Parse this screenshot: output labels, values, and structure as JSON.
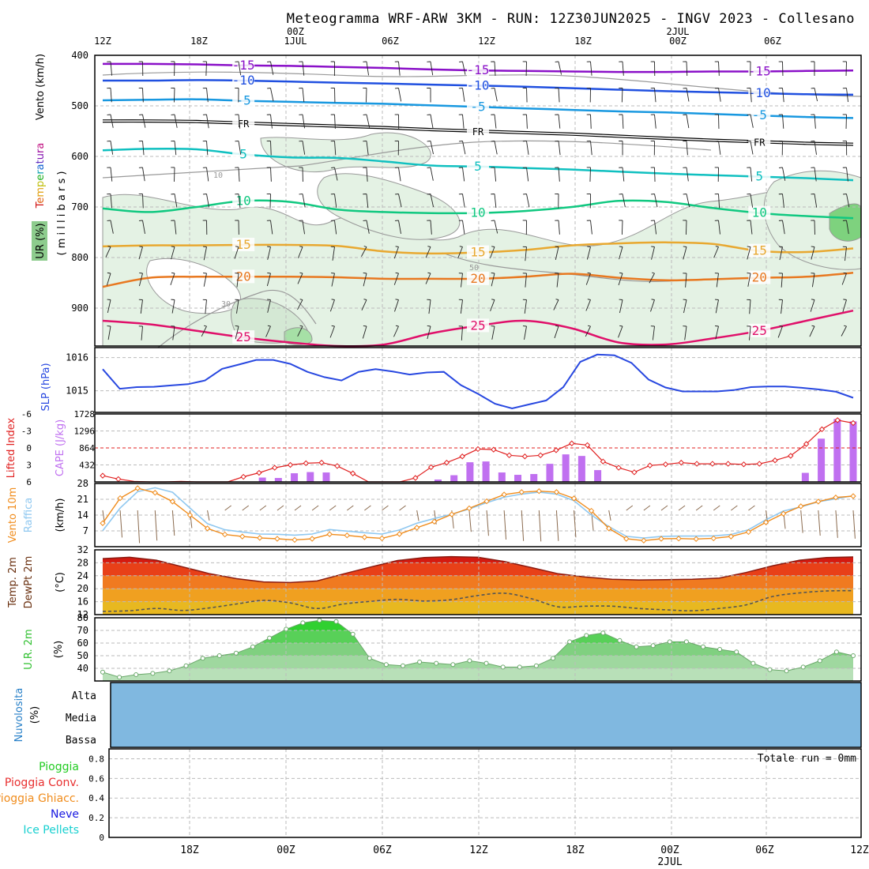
{
  "title": "Meteogramma WRF-ARW 3KM - RUN: 12Z30JUN2025 - INGV 2023 - Collesano",
  "colors": {
    "temp_iso": {
      "-15": "#8a10c8",
      "-10": "#2050e0",
      "-5": "#1898e0",
      "FR": "#000000",
      "5": "#10c0c0",
      "10": "#10c880",
      "15": "#e8a830",
      "20": "#e87820",
      "25": "#e0106a"
    },
    "slp": "#2848e0",
    "cape_bar": "#c070f0",
    "li_line": "#e02020",
    "wind": "#f08c1c",
    "gust": "#90c8f0",
    "arrow": "#8a6a4e",
    "cloud": "#80b8e0",
    "rh_fill": "#30dd30",
    "ur_bg": "#e6f3e6"
  },
  "chart_data": [
    {
      "id": "upper_air",
      "type": "contour",
      "top_labels": [
        "12Z",
        "18Z",
        "1JUL",
        "00Z",
        "06Z",
        "12Z",
        "18Z",
        "2JUL",
        "00Z",
        "06Z"
      ],
      "ylabel_wind": "Vento (km/h)",
      "ylabel_temp": "Temperatura",
      "ylabel_ur": "UR (%)",
      "ylabel_units": "( m i l l i b a r s )",
      "y_ticks": [
        "400",
        "500",
        "600",
        "700",
        "800",
        "900"
      ],
      "ylim": [
        975,
        400
      ],
      "isotherms": [
        {
          "label": "-15",
          "p": [
            417,
            417,
            418,
            420,
            421,
            423,
            425,
            428,
            430,
            431,
            432,
            433,
            433,
            432,
            432,
            431,
            430
          ]
        },
        {
          "label": "-10",
          "p": [
            450,
            450,
            449,
            450,
            452,
            454,
            456,
            458,
            460,
            462,
            465,
            468,
            471,
            473,
            475,
            477,
            478
          ]
        },
        {
          "label": "-5",
          "p": [
            489,
            488,
            487,
            490,
            492,
            494,
            496,
            499,
            502,
            505,
            508,
            511,
            513,
            516,
            519,
            522,
            524
          ]
        },
        {
          "label": "FR",
          "p": [
            530,
            530,
            531,
            534,
            537,
            540,
            543,
            547,
            550,
            553,
            556,
            560,
            564,
            568,
            571,
            574,
            576
          ]
        },
        {
          "label": "5",
          "p": [
            588,
            585,
            586,
            596,
            602,
            603,
            610,
            618,
            620,
            623,
            626,
            630,
            634,
            637,
            640,
            643,
            647
          ]
        },
        {
          "label": "10",
          "p": [
            703,
            710,
            700,
            688,
            690,
            705,
            710,
            712,
            712,
            708,
            700,
            688,
            690,
            702,
            712,
            718,
            722
          ]
        },
        {
          "label": "15",
          "p": [
            778,
            776,
            776,
            775,
            775,
            777,
            788,
            792,
            790,
            785,
            776,
            772,
            770,
            773,
            787,
            789,
            782
          ]
        },
        {
          "label": "20",
          "p": [
            858,
            840,
            838,
            838,
            838,
            839,
            842,
            842,
            842,
            838,
            832,
            840,
            845,
            843,
            840,
            838,
            830
          ]
        },
        {
          "label": "25",
          "p": [
            925,
            932,
            945,
            958,
            968,
            975,
            972,
            950,
            935,
            925,
            940,
            968,
            972,
            960,
            945,
            925,
            905
          ]
        }
      ]
    },
    {
      "id": "slp",
      "type": "line",
      "ylabel": "SLP (hPa)",
      "y_ticks": [
        "1016",
        "1015"
      ],
      "ylim": [
        1014.35,
        1016.3
      ],
      "values": [
        1015.65,
        1015.06,
        1015.11,
        1015.12,
        1015.16,
        1015.2,
        1015.31,
        1015.66,
        1015.79,
        1015.93,
        1015.93,
        1015.81,
        1015.57,
        1015.41,
        1015.31,
        1015.57,
        1015.65,
        1015.58,
        1015.49,
        1015.55,
        1015.57,
        1015.17,
        1014.91,
        1014.61,
        1014.47,
        1014.59,
        1014.71,
        1015.11,
        1015.87,
        1016.09,
        1016.07,
        1015.84,
        1015.34,
        1015.1,
        1014.98,
        1014.98,
        1014.98,
        1015.02,
        1015.11,
        1015.13,
        1015.13,
        1015.09,
        1015.04,
        1014.97,
        1014.79
      ]
    },
    {
      "id": "cape_li",
      "type": "bar+line",
      "ylabel_li": "Lifted Index",
      "ylabel_cape": "CAPE (J/kg)",
      "li_ticks": [
        "-6",
        "-3",
        "0",
        "3",
        "6"
      ],
      "li_lim": [
        6,
        -6
      ],
      "cape_ticks": [
        "1728",
        "1296",
        "864",
        "432"
      ],
      "cape_lim": [
        0,
        1728
      ],
      "cape": [
        0,
        0,
        0,
        0,
        0,
        0,
        0,
        0,
        0,
        0,
        110,
        100,
        220,
        250,
        240,
        0,
        0,
        0,
        0,
        0,
        10,
        60,
        170,
        500,
        520,
        240,
        180,
        200,
        460,
        700,
        660,
        300,
        0,
        0,
        0,
        0,
        0,
        0,
        0,
        0,
        0,
        0,
        0,
        0,
        230,
        1100,
        1600,
        1540
      ],
      "li": [
        4.9,
        5.5,
        5.9,
        6.3,
        6.1,
        5.9,
        6.2,
        6.5,
        6.0,
        5.1,
        4.4,
        3.5,
        3.0,
        2.7,
        2.6,
        3.2,
        4.5,
        6.2,
        6.6,
        6.4,
        5.3,
        3.4,
        2.6,
        1.5,
        0.2,
        0.3,
        1.3,
        1.5,
        1.3,
        0.4,
        -0.8,
        -0.5,
        2.4,
        3.5,
        4.3,
        3.1,
        2.9,
        2.6,
        2.8,
        2.8,
        2.8,
        2.9,
        2.8,
        2.2,
        1.4,
        -0.7,
        -3.3,
        -4.9,
        -4.4
      ]
    },
    {
      "id": "wind10m",
      "type": "line",
      "ylabel_wind": "Vento 10m",
      "ylabel_gust": "Raffica",
      "ylabel_units": "(km/h)",
      "y_ticks": [
        "28",
        "21",
        "14",
        "7"
      ],
      "ylim": [
        0,
        28
      ],
      "wind": [
        10.4,
        21.5,
        25.9,
        23.9,
        20.0,
        14.0,
        8.1,
        5.4,
        4.5,
        3.9,
        3.5,
        3.0,
        3.5,
        5.5,
        5.0,
        4.2,
        3.7,
        5.6,
        8.4,
        11.1,
        14.3,
        17.0,
        20.1,
        23.1,
        24.2,
        24.6,
        24.2,
        21.4,
        15.9,
        8.1,
        3.5,
        2.7,
        3.5,
        3.6,
        3.4,
        3.7,
        4.5,
        6.5,
        10.8,
        14.6,
        17.9,
        20.0,
        21.8,
        22.4
      ],
      "gust": [
        7.1,
        17.1,
        24.4,
        26.1,
        24.1,
        17.1,
        10.2,
        7.5,
        6.5,
        5.6,
        5.5,
        5.1,
        5.6,
        7.6,
        6.9,
        6.2,
        5.6,
        7.4,
        10.4,
        12.5,
        14.4,
        16.7,
        19.5,
        21.9,
        23.3,
        24.2,
        23.3,
        20.4,
        14.0,
        8.9,
        4.6,
        3.8,
        4.5,
        4.7,
        4.7,
        4.8,
        5.4,
        7.5,
        11.9,
        15.8,
        17.6,
        19.9,
        21.2,
        22.6
      ]
    },
    {
      "id": "temp2m",
      "type": "area",
      "ylabel_temp": "Temp. 2m",
      "ylabel_dew": "DewPt 2m",
      "ylabel_units": "(°C)",
      "y_ticks": [
        "32",
        "28",
        "24",
        "20",
        "16",
        "12"
      ],
      "ylim": [
        12,
        32
      ],
      "temp": [
        29.3,
        29.7,
        28.8,
        26.7,
        24.6,
        23.1,
        22.1,
        21.9,
        22.4,
        24.6,
        26.7,
        28.7,
        29.6,
        29.9,
        29.7,
        28.4,
        26.5,
        24.6,
        23.6,
        22.9,
        22.7,
        22.8,
        22.9,
        23.3,
        25.0,
        27.1,
        28.8,
        29.6,
        29.8
      ],
      "dewpt": [
        13.0,
        13.2,
        13.9,
        13.3,
        14.1,
        15.3,
        16.4,
        15.6,
        13.9,
        15.3,
        16.1,
        16.7,
        16.2,
        16.6,
        17.9,
        18.6,
        16.9,
        14.4,
        14.6,
        14.6,
        13.9,
        13.5,
        13.2,
        13.9,
        15.0,
        17.6,
        18.7,
        19.3,
        19.4
      ]
    },
    {
      "id": "rh2m",
      "type": "area",
      "ylabel": "U.R. 2m",
      "ylabel_units": "(%)",
      "y_ticks": [
        "80",
        "70",
        "60",
        "50",
        "40"
      ],
      "ylim": [
        30,
        80
      ],
      "values": [
        37,
        33,
        35,
        36,
        38,
        42,
        48,
        50,
        52,
        57,
        64,
        71,
        76,
        78,
        77,
        67,
        48,
        43,
        42,
        45,
        44,
        43,
        46,
        44,
        41,
        41,
        42,
        48,
        61,
        66,
        68,
        62,
        57,
        58,
        61,
        61,
        57,
        55,
        53,
        44,
        39,
        38,
        41,
        46,
        53,
        50
      ]
    },
    {
      "id": "cloud",
      "type": "heatmap",
      "ylabel": "Nuvolosita",
      "ylabel_units": "(%)",
      "levels": [
        "Alta",
        "Media",
        "Bassa"
      ]
    },
    {
      "id": "precip",
      "type": "bar",
      "legend": [
        {
          "label": "Pioggia",
          "color": "#22cc22"
        },
        {
          "label": "Pioggia Conv.",
          "color": "#e83030"
        },
        {
          "label": "Pioggia Ghiacc.",
          "color": "#f08c1c"
        },
        {
          "label": "Neve",
          "color": "#1818e0"
        },
        {
          "label": "Ice Pellets",
          "color": "#18d0d0"
        }
      ],
      "total": "Totale run = 0mm",
      "y_ticks": [
        "0.8",
        "0.6",
        "0.4",
        "0.2",
        "0"
      ],
      "ylim": [
        0,
        0.9
      ],
      "bottom_labels": [
        "18Z",
        "00Z",
        "06Z",
        "12Z",
        "18Z",
        "00Z",
        "2JUL",
        "06Z",
        "12Z"
      ]
    }
  ]
}
